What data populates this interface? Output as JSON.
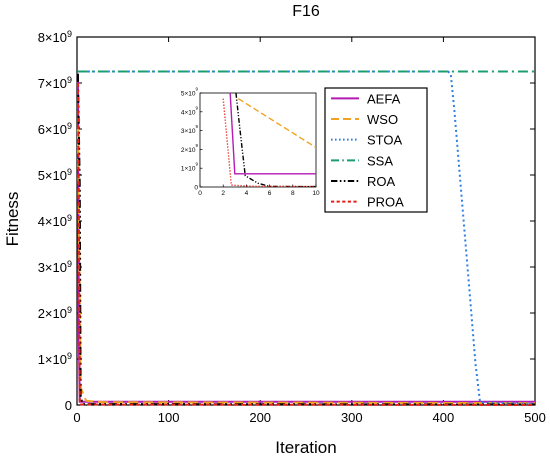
{
  "chart_data": {
    "type": "line",
    "title": "F16",
    "xlabel": "Iteration",
    "ylabel": "Fitness",
    "xlim": [
      0,
      500
    ],
    "ylim": [
      0,
      8000000000
    ],
    "x_ticks": [
      "0",
      "100",
      "200",
      "300",
      "400",
      "500"
    ],
    "y_ticks": [
      {
        "mant": "0",
        "exp": ""
      },
      {
        "mant": "1×10",
        "exp": "9"
      },
      {
        "mant": "2×10",
        "exp": "9"
      },
      {
        "mant": "3×10",
        "exp": "9"
      },
      {
        "mant": "4×10",
        "exp": "9"
      },
      {
        "mant": "5×10",
        "exp": "9"
      },
      {
        "mant": "6×10",
        "exp": "9"
      },
      {
        "mant": "7×10",
        "exp": "9"
      },
      {
        "mant": "8×10",
        "exp": "9"
      }
    ],
    "legend_position": "top-right",
    "series": [
      {
        "name": "AEFA",
        "color": "#b31bb3",
        "dash": "solid",
        "points": [
          [
            1,
            7200000000
          ],
          [
            2,
            1500000000
          ],
          [
            3,
            70000000
          ],
          [
            10,
            70000000
          ],
          [
            500,
            70000000
          ]
        ]
      },
      {
        "name": "WSO",
        "color": "#f0a323",
        "dash": "dash",
        "points": [
          [
            1,
            6000000000
          ],
          [
            4,
            380000000
          ],
          [
            10,
            90000000
          ],
          [
            30,
            60000000
          ],
          [
            500,
            40000000
          ]
        ]
      },
      {
        "name": "STOA",
        "color": "#2f7fe0",
        "dash": "dot",
        "points": [
          [
            1,
            7250000000
          ],
          [
            405,
            7250000000
          ],
          [
            408,
            7200000000
          ],
          [
            412,
            6400000000
          ],
          [
            420,
            4500000000
          ],
          [
            428,
            2600000000
          ],
          [
            435,
            900000000
          ],
          [
            440,
            60000000
          ],
          [
            500,
            20000000
          ]
        ]
      },
      {
        "name": "SSA",
        "color": "#1a9e6e",
        "dash": "dashdot",
        "points": [
          [
            1,
            7250000000
          ],
          [
            500,
            7250000000
          ]
        ]
      },
      {
        "name": "ROA",
        "color": "#000000",
        "dash": "dashdotdot",
        "points": [
          [
            1,
            7200000000
          ],
          [
            3,
            4800000000
          ],
          [
            4,
            200000000
          ],
          [
            6,
            20000000
          ],
          [
            500,
            10000000
          ]
        ]
      },
      {
        "name": "PROA",
        "color": "#e8201a",
        "dash": "shortdash",
        "points": [
          [
            1,
            7000000000
          ],
          [
            2,
            4600000000
          ],
          [
            3,
            10000000
          ],
          [
            500,
            0
          ]
        ]
      }
    ],
    "inset": {
      "xlim": [
        0,
        10
      ],
      "ylim": [
        0,
        5000000000
      ],
      "x_ticks": [
        "0",
        "2",
        "4",
        "6",
        "8",
        "10"
      ],
      "y_ticks": [
        {
          "mant": "0",
          "exp": ""
        },
        {
          "mant": "1×10",
          "exp": "9"
        },
        {
          "mant": "2×10",
          "exp": "9"
        },
        {
          "mant": "3×10",
          "exp": "9"
        },
        {
          "mant": "4×10",
          "exp": "9"
        },
        {
          "mant": "5×10",
          "exp": "9"
        }
      ],
      "series": [
        {
          "name": "AEFA",
          "color": "#b31bb3",
          "dash": "solid",
          "points": [
            [
              2.6,
              5000000000
            ],
            [
              3.0,
              700000000
            ],
            [
              10,
              700000000
            ]
          ]
        },
        {
          "name": "WSO",
          "color": "#f0a323",
          "dash": "dash",
          "points": [
            [
              3.3,
              4700000000
            ],
            [
              10,
              2100000000
            ]
          ]
        },
        {
          "name": "ROA",
          "color": "#000000",
          "dash": "dashdotdot",
          "points": [
            [
              3.1,
              5000000000
            ],
            [
              3.4,
              3300000000
            ],
            [
              3.9,
              600000000
            ],
            [
              5.0,
              200000000
            ],
            [
              6.0,
              30000000
            ],
            [
              10,
              20000000
            ]
          ]
        },
        {
          "name": "PROA",
          "color": "#e8201a",
          "dash": "dot",
          "points": [
            [
              2.0,
              4700000000
            ],
            [
              2.35,
              2400000000
            ],
            [
              2.7,
              100000000
            ],
            [
              4.5,
              40000000
            ],
            [
              10,
              20000000
            ]
          ]
        }
      ]
    }
  }
}
